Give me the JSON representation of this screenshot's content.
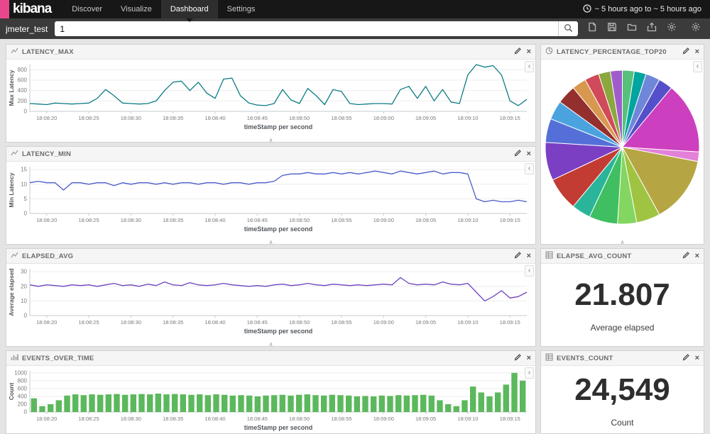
{
  "navbar": {
    "brand": "kibana",
    "items": [
      {
        "label": "Discover"
      },
      {
        "label": "Visualize"
      },
      {
        "label": "Dashboard",
        "active": true
      },
      {
        "label": "Settings"
      }
    ],
    "time_range": "~ 5 hours ago to ~ 5 hours ago"
  },
  "toolbar": {
    "index_label": "jmeter_test",
    "query_value": "1"
  },
  "panels": {
    "latency_max": {
      "title": "LATENCY_MAX",
      "chart_data": {
        "type": "line",
        "color": "#0c7c84",
        "ylabel": "Max Latency",
        "xlabel": "timeStamp per second",
        "ylim": [
          0,
          900
        ],
        "yticks": [
          0,
          200,
          400,
          600,
          800
        ],
        "x_ticks": [
          "18:08:20",
          "18:08:25",
          "18:08:30",
          "18:08:35",
          "18:08:40",
          "18:08:45",
          "18:08:50",
          "18:08:55",
          "18:09:00",
          "18:09:05",
          "18:09:10",
          "18:09:15"
        ],
        "x_tick_start": 2,
        "x_tick_step": 5,
        "values": [
          150,
          140,
          130,
          160,
          150,
          140,
          150,
          160,
          250,
          420,
          300,
          160,
          150,
          140,
          150,
          200,
          400,
          560,
          580,
          400,
          560,
          350,
          250,
          620,
          640,
          300,
          160,
          120,
          110,
          150,
          420,
          220,
          150,
          440,
          300,
          130,
          420,
          380,
          150,
          130,
          140,
          150,
          150,
          140,
          420,
          480,
          250,
          480,
          200,
          420,
          180,
          150,
          700,
          900,
          850,
          880,
          700,
          200,
          110,
          230
        ]
      }
    },
    "latency_percentage_top20": {
      "title": "LATENCY_PERCENTAGE_TOP20",
      "chart_data": {
        "type": "pie",
        "values": [
          2.5,
          2.5,
          3,
          3,
          15,
          2,
          14,
          5,
          4,
          6,
          4,
          7,
          8,
          5,
          4,
          4,
          3,
          3,
          2.5,
          2.5
        ],
        "colors": [
          "#57c17b",
          "#01a5a0",
          "#6f87d8",
          "#5450c9",
          "#cc3fbe",
          "#e381d8",
          "#b5a643",
          "#9fc442",
          "#83d65f",
          "#3fbf61",
          "#2ab59b",
          "#c23c33",
          "#7b3fc4",
          "#5470d8",
          "#4aa3df",
          "#93302e",
          "#d9984f",
          "#d04a5a",
          "#8aa83d",
          "#a05ccc"
        ]
      }
    },
    "latency_min": {
      "title": "LATENCY_MIN",
      "chart_data": {
        "type": "line",
        "color": "#4a5ccc",
        "ylabel": "Min Latency",
        "xlabel": "timeStamp per second",
        "ylim": [
          0,
          16
        ],
        "yticks": [
          0,
          5,
          10,
          15
        ],
        "x_ticks": [
          "18:08:20",
          "18:08:25",
          "18:08:30",
          "18:08:35",
          "18:08:40",
          "18:08:45",
          "18:08:50",
          "18:08:55",
          "18:09:00",
          "18:09:05",
          "18:09:10",
          "18:09:15"
        ],
        "x_tick_start": 2,
        "x_tick_step": 5,
        "values": [
          10.5,
          11,
          10.5,
          10.5,
          8,
          10.5,
          10.5,
          10,
          10.5,
          10.5,
          9.5,
          10.5,
          10,
          10.5,
          10.5,
          10,
          10.5,
          10,
          10.5,
          10.5,
          10,
          10.5,
          10.5,
          10,
          10.5,
          10.5,
          10,
          10.5,
          10.5,
          11,
          13,
          13.5,
          13.5,
          14,
          13.5,
          13.5,
          14,
          13.5,
          14,
          13.5,
          14,
          14.5,
          14,
          13.5,
          14.5,
          14,
          13.5,
          14,
          14.5,
          13.5,
          14,
          14,
          13.5,
          5,
          4,
          4.5,
          4,
          4,
          4.5,
          4
        ]
      }
    },
    "elapsed_avg": {
      "title": "ELAPSED_AVG",
      "chart_data": {
        "type": "line",
        "color": "#6f42c1",
        "ylabel": "Average elapsed",
        "xlabel": "timeStamp per second",
        "ylim": [
          0,
          32
        ],
        "yticks": [
          0,
          10,
          20,
          30
        ],
        "x_ticks": [
          "18:08:20",
          "18:08:25",
          "18:08:30",
          "18:08:35",
          "18:08:40",
          "18:08:45",
          "18:08:50",
          "18:08:55",
          "18:09:00",
          "18:09:05",
          "18:09:10",
          "18:09:15"
        ],
        "x_tick_start": 2,
        "x_tick_step": 5,
        "values": [
          21,
          20,
          21,
          20.5,
          20,
          21,
          20.5,
          21,
          20,
          21,
          22,
          20.5,
          21,
          20,
          21.5,
          20.5,
          23,
          21,
          20.5,
          22.5,
          21,
          20.5,
          21,
          22,
          21,
          20.5,
          20,
          20.5,
          20,
          21,
          21.5,
          20.5,
          21,
          22,
          21,
          20.5,
          21.5,
          21,
          20.5,
          21,
          20.5,
          21,
          21.5,
          21,
          26,
          22,
          21,
          21.5,
          21,
          23,
          21.5,
          21,
          22,
          16,
          10,
          13,
          17,
          12,
          13,
          16
        ]
      }
    },
    "elapse_avg_count": {
      "title": "ELAPSE_AVG_COUNT",
      "metric_value": "21.807",
      "metric_label": "Average elapsed"
    },
    "events_over_time": {
      "title": "EVENTS_OVER_TIME",
      "chart_data": {
        "type": "bar",
        "color": "#5cb85c",
        "ylabel": "Count",
        "xlabel": "timeStamp per second",
        "ylim": [
          0,
          1050
        ],
        "yticks": [
          0,
          200,
          400,
          600,
          800,
          1000
        ],
        "x_ticks": [
          "18:08:20",
          "18:08:25",
          "18:08:30",
          "18:08:35",
          "18:08:40",
          "18:08:45",
          "18:08:50",
          "18:08:55",
          "18:09:00",
          "18:09:05",
          "18:09:10",
          "18:09:15"
        ],
        "x_tick_start": 2,
        "x_tick_step": 5,
        "values": [
          350,
          150,
          200,
          300,
          420,
          450,
          430,
          450,
          440,
          450,
          460,
          440,
          450,
          460,
          450,
          470,
          450,
          460,
          450,
          440,
          450,
          430,
          450,
          440,
          420,
          430,
          420,
          400,
          420,
          430,
          440,
          420,
          440,
          450,
          430,
          420,
          440,
          430,
          420,
          400,
          410,
          400,
          420,
          410,
          430,
          420,
          430,
          440,
          420,
          300,
          200,
          150,
          300,
          650,
          500,
          400,
          500,
          700,
          1000,
          800
        ]
      }
    },
    "events_count": {
      "title": "EVENTS_COUNT",
      "metric_value": "24,549",
      "metric_label": "Count"
    }
  },
  "misc": {
    "spy_toggle": "‹",
    "collapse_caret": "∧",
    "close_glyph": "×"
  }
}
